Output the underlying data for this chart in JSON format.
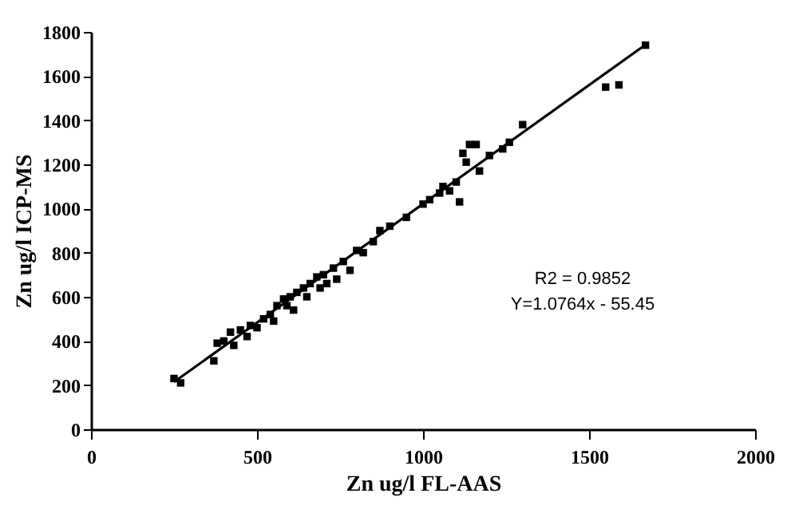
{
  "chart_data": {
    "type": "scatter",
    "xlabel": "Zn ug/l  FL-AAS",
    "ylabel": "Zn ug/l ICP-MS",
    "xlim": [
      0,
      2000
    ],
    "xticks": [
      0,
      500,
      1000,
      1500,
      2000
    ],
    "ylim": [
      0,
      1800
    ],
    "yticks": [
      0,
      200,
      400,
      600,
      800,
      1000,
      1200,
      1400,
      1600,
      1800
    ],
    "grid": false,
    "marker": "square",
    "annotations": [
      {
        "text": "R2 = 0.9852"
      },
      {
        "text": "Y=1.0764x - 55.45"
      }
    ],
    "series": [
      {
        "type": "scatter",
        "color": "#000000",
        "x": [
          250,
          270,
          370,
          380,
          400,
          420,
          430,
          450,
          470,
          480,
          500,
          520,
          540,
          550,
          560,
          580,
          590,
          600,
          610,
          620,
          640,
          650,
          660,
          680,
          690,
          700,
          710,
          730,
          740,
          760,
          780,
          800,
          820,
          850,
          870,
          900,
          950,
          1000,
          1020,
          1050,
          1060,
          1080,
          1100,
          1110,
          1120,
          1130,
          1140,
          1160,
          1170,
          1200,
          1240,
          1260,
          1300,
          1550,
          1590,
          1670
        ],
        "values": [
          230,
          210,
          310,
          390,
          400,
          440,
          380,
          450,
          420,
          470,
          460,
          500,
          520,
          490,
          560,
          590,
          560,
          600,
          540,
          620,
          640,
          600,
          660,
          690,
          640,
          700,
          660,
          730,
          680,
          760,
          720,
          810,
          800,
          850,
          900,
          920,
          960,
          1020,
          1040,
          1070,
          1100,
          1080,
          1120,
          1030,
          1250,
          1210,
          1290,
          1290,
          1170,
          1240,
          1270,
          1300,
          1380,
          1550,
          1560,
          1740
        ]
      },
      {
        "type": "line",
        "color": "#000000",
        "marker": "none",
        "x": [
          250,
          1670
        ],
        "values": [
          214,
          1742
        ]
      }
    ]
  }
}
